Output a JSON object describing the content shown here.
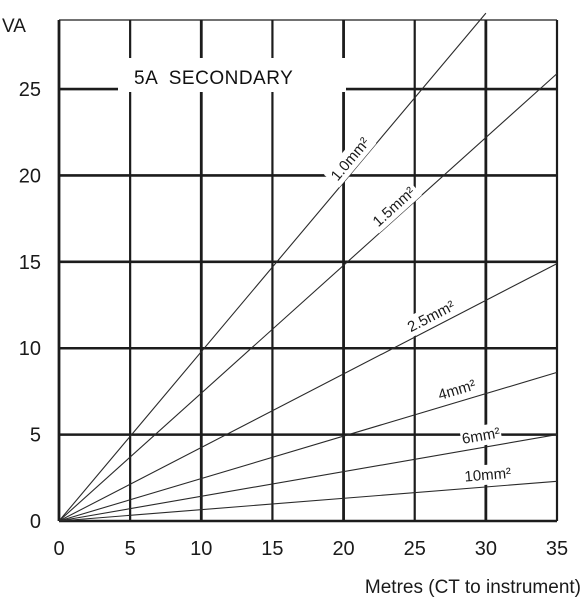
{
  "chart_data": {
    "type": "line",
    "title": "5A  SECONDARY",
    "ylabel": "VA",
    "xlabel": "Metres (CT to instrument)",
    "xlim": [
      0,
      35
    ],
    "ylim": [
      0,
      29
    ],
    "x_ticks": [
      "0",
      "5",
      "10",
      "15",
      "20",
      "25",
      "30",
      "35"
    ],
    "y_ticks": [
      "0",
      "5",
      "10",
      "15",
      "20",
      "25"
    ],
    "grid": true,
    "legend": "labels-on-lines",
    "series": [
      {
        "name": "1.0mm²",
        "x": [
          0,
          30
        ],
        "y": [
          0,
          29.4
        ]
      },
      {
        "name": "1.5mm²",
        "x": [
          0,
          35
        ],
        "y": [
          0,
          25.9
        ]
      },
      {
        "name": "2.5mm²",
        "x": [
          0,
          35
        ],
        "y": [
          0,
          14.9
        ]
      },
      {
        "name": "4mm²",
        "x": [
          0,
          35
        ],
        "y": [
          0,
          8.6
        ]
      },
      {
        "name": "6mm²",
        "x": [
          0,
          35
        ],
        "y": [
          0,
          5.0
        ]
      },
      {
        "name": "10mm²",
        "x": [
          0,
          35
        ],
        "y": [
          0,
          2.3
        ]
      }
    ]
  },
  "colors": {
    "grid": "#1c1c1c",
    "line": "#2a2a2a",
    "text": "#1a1a1a",
    "background": "#ffffff"
  }
}
